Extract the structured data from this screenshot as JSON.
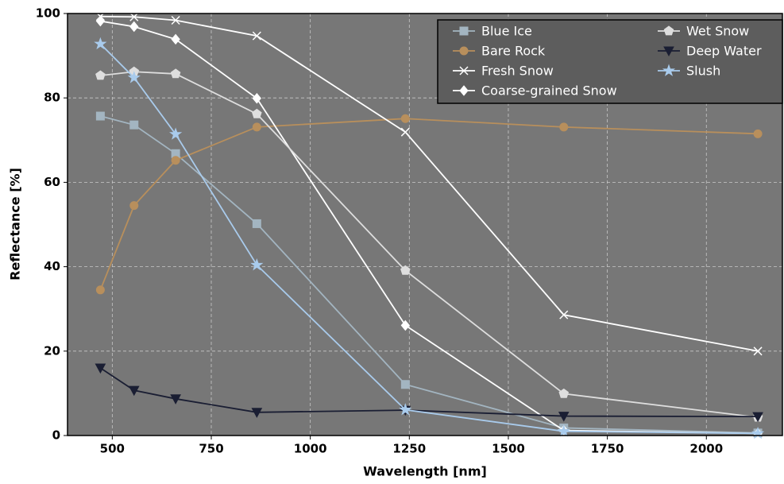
{
  "chart_data": {
    "type": "line",
    "xlabel": "Wavelength [nm]",
    "ylabel": "Reflectance [%]",
    "x": [
      470,
      555,
      660,
      865,
      1240,
      1640,
      2130
    ],
    "xlim": [
      387,
      2192
    ],
    "ylim": [
      0,
      100
    ],
    "xticks": [
      500,
      750,
      1000,
      1250,
      1500,
      1750,
      2000
    ],
    "yticks": [
      0,
      20,
      40,
      60,
      80,
      100
    ],
    "grid": true,
    "legend": "upper right",
    "series": [
      {
        "name": "Blue Ice",
        "color": "#a3b5c1",
        "marker": "square",
        "values": [
          75.7,
          73.6,
          66.8,
          50.2,
          12.1,
          1.8,
          0.6
        ]
      },
      {
        "name": "Bare Rock",
        "color": "#b88f5c",
        "marker": "circle",
        "values": [
          34.5,
          54.5,
          65.2,
          73.1,
          75.1,
          73.1,
          71.5
        ]
      },
      {
        "name": "Fresh Snow",
        "color": "#ffffff",
        "marker": "x",
        "values": [
          99.3,
          99.2,
          98.4,
          94.7,
          71.9,
          28.6,
          20.0
        ]
      },
      {
        "name": "Coarse-grained Snow",
        "color": "#ffffff",
        "marker": "diamond",
        "values": [
          98.2,
          96.9,
          93.9,
          79.9,
          26.1,
          1.2,
          0.5
        ]
      },
      {
        "name": "Wet Snow",
        "color": "#dedede",
        "marker": "pentagon",
        "values": [
          85.3,
          86.2,
          85.7,
          76.2,
          39.1,
          9.9,
          4.3
        ]
      },
      {
        "name": "Deep Water",
        "color": "#1a1e33",
        "marker": "triangle-down",
        "values": [
          16.0,
          10.7,
          8.7,
          5.5,
          6.0,
          4.6,
          4.5
        ]
      },
      {
        "name": "Slush",
        "color": "#a9cbec",
        "marker": "star",
        "values": [
          92.8,
          84.8,
          71.4,
          40.4,
          6.1,
          1.0,
          0.5
        ]
      }
    ]
  }
}
